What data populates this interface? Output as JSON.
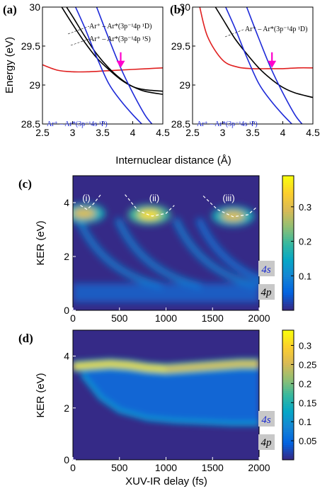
{
  "colors": {
    "red_curve": "#e02020",
    "black_curve": "#000000",
    "blue_curve": "#1e2ad8",
    "arrow": "#ff00cc",
    "tag_background": "#c8c8c8",
    "tag_4s_text": "#1a2ad0",
    "tag_4p_text": "#000000"
  },
  "colormap": [
    "#352a87",
    "#0363e1",
    "#1485d4",
    "#06a7c6",
    "#38b99e",
    "#92bf73",
    "#d9ba56",
    "#fcce2e",
    "#f9fb0e"
  ],
  "chart_data": [
    {
      "panel": "(a)",
      "type": "line",
      "xlabel": "Internuclear distance (Å)",
      "ylabel": "Energy  (eV)",
      "xlim": [
        2.5,
        4.5
      ],
      "ylim": [
        28.5,
        30
      ],
      "xticks": [
        "2.5",
        "3",
        "3.5",
        "4",
        "4.5"
      ],
      "yticks": [
        "28.5",
        "29",
        "29.5",
        "30"
      ],
      "annotations": [
        {
          "text": "Ar⁺ – Ar*(3p⁻¹4p ¹D)",
          "color": "#000000"
        },
        {
          "text": "Ar⁺ – Ar*(3p⁻¹4p ¹S)",
          "color": "#000000"
        },
        {
          "text": "Ar⁺ – Ar*(3p⁻¹4s ¹P)",
          "color": "#1e2ad8"
        }
      ],
      "arrow_at": {
        "x": 3.8,
        "y": 29.22
      },
      "series": [
        {
          "color": "red",
          "x": [
            2.5,
            2.75,
            3.0,
            3.25,
            3.5,
            3.75,
            4.0,
            4.25,
            4.5
          ],
          "y": [
            29.26,
            29.19,
            29.17,
            29.17,
            29.18,
            29.19,
            29.2,
            29.21,
            29.22
          ]
        },
        {
          "color": "black",
          "x": [
            2.9,
            3.0,
            3.2,
            3.4,
            3.6,
            3.8,
            4.0,
            4.2,
            4.5
          ],
          "y": [
            30.0,
            29.88,
            29.63,
            29.4,
            29.22,
            29.08,
            28.98,
            28.92,
            28.88
          ]
        },
        {
          "color": "black",
          "x": [
            2.82,
            3.0,
            3.2,
            3.4,
            3.6,
            3.8,
            4.0,
            4.2,
            4.5
          ],
          "y": [
            30.0,
            29.78,
            29.55,
            29.35,
            29.2,
            29.07,
            28.98,
            28.94,
            28.92
          ]
        },
        {
          "color": "blue",
          "x": [
            3.05,
            3.2,
            3.4,
            3.6,
            3.8,
            4.0,
            4.15
          ],
          "y": [
            30.0,
            29.74,
            29.36,
            29.02,
            28.8,
            28.62,
            28.5
          ]
        },
        {
          "color": "blue",
          "x": [
            3.4,
            3.6,
            3.8,
            4.0,
            4.2,
            4.32
          ],
          "y": [
            30.0,
            29.6,
            29.22,
            28.9,
            28.62,
            28.5
          ]
        }
      ]
    },
    {
      "panel": "(b)",
      "type": "line",
      "xlim": [
        2.5,
        4.5
      ],
      "ylim": [
        28.5,
        30
      ],
      "xticks": [
        "2.5",
        "3",
        "3.5",
        "4",
        "4.5"
      ],
      "yticks": [
        "28.5",
        "29",
        "29.5",
        "30"
      ],
      "annotations": [
        {
          "text": "Ar⁺ – Ar*(3p⁻¹4p ¹D)",
          "color": "#000000"
        },
        {
          "text": "Ar⁺ – Ar*(3p⁻¹4s ¹P)",
          "color": "#1e2ad8"
        }
      ],
      "arrow_at": {
        "x": 3.82,
        "y": 29.22
      },
      "series": [
        {
          "color": "red",
          "x": [
            2.62,
            2.75,
            3.0,
            3.25,
            3.5,
            3.75,
            4.0,
            4.25,
            4.5
          ],
          "y": [
            30.0,
            29.62,
            29.32,
            29.23,
            29.21,
            29.21,
            29.21,
            29.22,
            29.22
          ]
        },
        {
          "color": "black",
          "x": [
            2.88,
            3.0,
            3.2,
            3.4,
            3.6,
            3.8,
            4.0,
            4.2,
            4.5
          ],
          "y": [
            30.0,
            29.85,
            29.6,
            29.4,
            29.22,
            29.08,
            28.97,
            28.9,
            28.84
          ]
        },
        {
          "color": "blue",
          "x": [
            3.05,
            3.2,
            3.4,
            3.6,
            3.8,
            4.0,
            4.15
          ],
          "y": [
            30.0,
            29.74,
            29.36,
            29.02,
            28.8,
            28.62,
            28.5
          ]
        },
        {
          "color": "blue",
          "x": [
            3.4,
            3.6,
            3.8,
            4.0,
            4.2,
            4.32
          ],
          "y": [
            30.0,
            29.6,
            29.22,
            28.9,
            28.62,
            28.5
          ]
        }
      ]
    },
    {
      "panel": "(c)",
      "type": "heatmap",
      "ylabel": "KER (eV)",
      "xlim": [
        0,
        2000
      ],
      "ylim": [
        0,
        5
      ],
      "xticks": [
        "0",
        "500",
        "1000",
        "1500",
        "2000"
      ],
      "yticks": [
        "0",
        "2",
        "4"
      ],
      "colorbar": {
        "range": [
          0,
          0.39
        ],
        "ticks": [
          "0.1",
          "0.2",
          "0.3"
        ],
        "tick_values": [
          0.1,
          0.2,
          0.3
        ]
      },
      "region_labels": [
        "(i)",
        "(ii)",
        "(iii)"
      ],
      "state_labels": [
        "4s",
        "4p"
      ],
      "peaks": [
        {
          "x": 120,
          "y": 3.6,
          "intensity": 0.3
        },
        {
          "x": 820,
          "y": 3.55,
          "intensity": 0.36
        },
        {
          "x": 1720,
          "y": 3.5,
          "intensity": 0.3
        }
      ],
      "dashed_curves": [
        {
          "x": [
            80,
            150,
            220,
            300
          ],
          "y": [
            3.9,
            3.75,
            3.95,
            4.3
          ]
        },
        {
          "x": [
            560,
            700,
            850,
            1000,
            1090
          ],
          "y": [
            4.3,
            3.7,
            3.5,
            3.6,
            3.9
          ]
        },
        {
          "x": [
            1400,
            1550,
            1720,
            1880,
            1980
          ],
          "y": [
            4.25,
            3.75,
            3.48,
            3.55,
            3.85
          ]
        }
      ]
    },
    {
      "panel": "(d)",
      "type": "heatmap",
      "ylabel": "KER (eV)",
      "xlabel": "XUV-IR delay (fs)",
      "xlim": [
        0,
        2000
      ],
      "ylim": [
        0,
        5
      ],
      "xticks": [
        "0",
        "500",
        "1000",
        "1500",
        "2000"
      ],
      "yticks": [
        "0",
        "2",
        "4"
      ],
      "colorbar": {
        "range": [
          0,
          0.34
        ],
        "ticks": [
          "0.05",
          "0.1",
          "0.15",
          "0.2",
          "0.25",
          "0.3"
        ],
        "tick_values": [
          0.05,
          0.1,
          0.15,
          0.2,
          0.25,
          0.3
        ]
      },
      "state_labels": [
        "4s",
        "4p"
      ],
      "upper_band": {
        "x": [
          0,
          200,
          400,
          600,
          800,
          1000,
          1200,
          1400,
          1600,
          1800,
          2000
        ],
        "y": [
          3.6,
          3.65,
          3.7,
          3.65,
          3.55,
          3.5,
          3.55,
          3.6,
          3.65,
          3.7,
          3.7
        ]
      },
      "lower_band": {
        "x": [
          100,
          300,
          500,
          800,
          1100,
          1400,
          1700,
          2000
        ],
        "y": [
          3.3,
          2.4,
          1.9,
          1.6,
          1.5,
          1.45,
          1.4,
          1.4
        ]
      }
    }
  ]
}
